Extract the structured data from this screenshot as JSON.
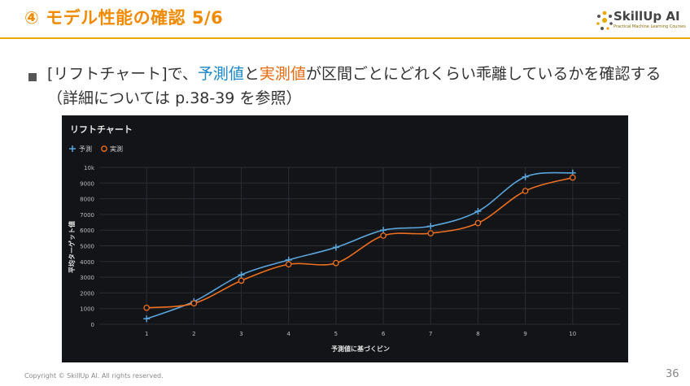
{
  "slide": {
    "title": "④ モデル性能の確認 5/6",
    "text_part1": "[リフトチャート]で、",
    "text_pred": "予測値",
    "text_and": "と",
    "text_act": "実測値",
    "text_rest": "が区間ごとにどれくらい乖離しているかを確認する（詳細については p.38-39 を参照）",
    "footer": "Copyright © SkillUp AI. All rights reserved.",
    "page_number": "36"
  },
  "logo": {
    "name": "SkillUp AI",
    "tagline": "Practical Machine Learning Courses"
  },
  "colors": {
    "accent": "#f08a00",
    "predicted": "#5aa6dc",
    "actual": "#ee6f1e",
    "panel_bg": "#121418"
  },
  "chart_data": {
    "type": "line",
    "title": "リフトチャート",
    "xlabel": "予測値に基づくビン",
    "ylabel": "平均ターゲット値",
    "x": [
      1,
      2,
      3,
      4,
      5,
      6,
      7,
      8,
      9,
      10
    ],
    "xlim": [
      0,
      11
    ],
    "ylim": [
      0,
      10000
    ],
    "yticks": [
      0,
      1000,
      2000,
      3000,
      4000,
      5000,
      6000,
      7000,
      8000,
      9000,
      10000
    ],
    "ytick_labels": [
      "0",
      "1000",
      "2000",
      "3000",
      "4000",
      "5000",
      "6000",
      "7000",
      "8000",
      "9000",
      "10k"
    ],
    "grid": true,
    "legend_position": "top-left",
    "series": [
      {
        "name": "予測",
        "marker": "plus",
        "color": "#5aa6dc",
        "values": [
          350,
          1450,
          3150,
          4100,
          4900,
          6000,
          6250,
          7200,
          9400,
          9650
        ]
      },
      {
        "name": "実測",
        "marker": "circle",
        "color": "#ee6f1e",
        "values": [
          1050,
          1330,
          2780,
          3820,
          3900,
          5650,
          5800,
          6450,
          8500,
          9350
        ]
      }
    ]
  }
}
